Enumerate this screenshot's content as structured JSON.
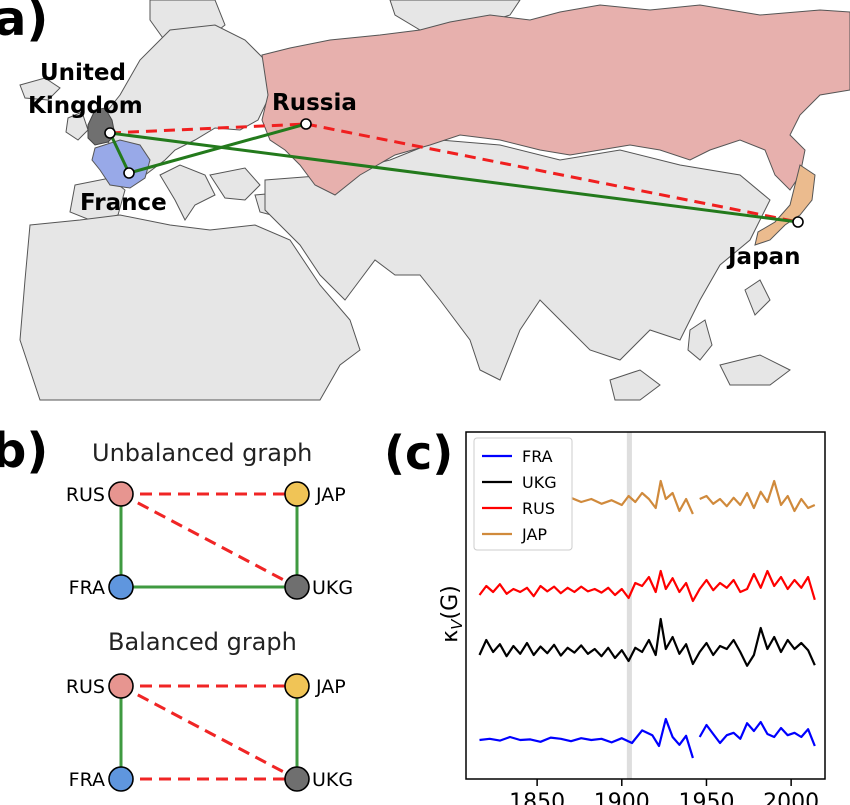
{
  "panel_a": {
    "letter": "a)",
    "countries": {
      "uk": {
        "label_line1": "United",
        "label_line2": "Kingdom"
      },
      "russia": {
        "label": "Russia"
      },
      "france": {
        "label": "France"
      },
      "japan": {
        "label": "Japan"
      }
    },
    "colors": {
      "russia_fill": "#e7b0ad",
      "france_fill": "#98a9e8",
      "japan_fill": "#ebbb8e",
      "uk_fill": "#707070",
      "land_fill": "#e6e6e6",
      "border": "#555555",
      "alliance_edge": "#237a1c",
      "enmity_edge": "#f01f1f"
    }
  },
  "panel_b": {
    "letter": "b)",
    "unbalanced_title": "Unbalanced graph",
    "balanced_title": "Balanced graph",
    "nodes": {
      "rus": "RUS",
      "jap": "JAP",
      "fra": "FRA",
      "ukg": "UKG"
    },
    "colors": {
      "rus": "#e79590",
      "jap": "#f0c456",
      "fra": "#5f96de",
      "ukg": "#6f6f6f",
      "alliance": "#3f9a40",
      "enmity": "#f02525"
    }
  },
  "panel_c": {
    "letter": "(c)",
    "ylabel": "κ_V(G)",
    "ylabel_main": "κ",
    "ylabel_sub": "V",
    "ylabel_paren": "(G)",
    "xticks": [
      "1850",
      "1900",
      "1950",
      "2000"
    ],
    "legend": [
      "FRA",
      "UKG",
      "RUS",
      "JAP"
    ]
  },
  "chart_data": {
    "type": "line",
    "title": "",
    "xlabel": "",
    "ylabel": "κ_V(G)",
    "xlim": [
      1808,
      2020
    ],
    "xticks": [
      1850,
      1900,
      1950,
      2000
    ],
    "highlight_band": [
      1903,
      1906
    ],
    "legend_position": "top-left",
    "series": [
      {
        "name": "FRA",
        "color": "#0000ff",
        "baseline": 0.0,
        "points": [
          [
            1816,
            0.0
          ],
          [
            1822,
            0.02
          ],
          [
            1828,
            -0.01
          ],
          [
            1834,
            0.05
          ],
          [
            1840,
            0.0
          ],
          [
            1846,
            0.01
          ],
          [
            1852,
            -0.03
          ],
          [
            1858,
            0.04
          ],
          [
            1864,
            0.02
          ],
          [
            1870,
            -0.02
          ],
          [
            1876,
            0.03
          ],
          [
            1882,
            0.0
          ],
          [
            1888,
            0.02
          ],
          [
            1894,
            -0.04
          ],
          [
            1900,
            0.03
          ],
          [
            1906,
            -0.05
          ],
          [
            1912,
            0.16
          ],
          [
            1918,
            0.08
          ],
          [
            1922,
            -0.1
          ],
          [
            1926,
            0.35
          ],
          [
            1930,
            0.05
          ],
          [
            1934,
            -0.08
          ],
          [
            1938,
            0.07
          ],
          [
            1942,
            -0.3
          ],
          null,
          [
            1946,
            0.05
          ],
          [
            1950,
            0.25
          ],
          [
            1954,
            0.1
          ],
          [
            1958,
            -0.05
          ],
          [
            1962,
            0.08
          ],
          [
            1966,
            0.12
          ],
          [
            1970,
            0.02
          ],
          [
            1974,
            0.28
          ],
          [
            1978,
            0.15
          ],
          [
            1982,
            0.3
          ],
          [
            1986,
            0.1
          ],
          [
            1990,
            0.05
          ],
          [
            1994,
            0.2
          ],
          [
            1998,
            0.08
          ],
          [
            2002,
            0.12
          ],
          [
            2006,
            0.05
          ],
          [
            2010,
            0.18
          ],
          [
            2014,
            -0.1
          ]
        ]
      },
      {
        "name": "UKG",
        "color": "#000000",
        "baseline": 1.0,
        "points": [
          [
            1816,
            1.0
          ],
          [
            1820,
            1.25
          ],
          [
            1824,
            1.05
          ],
          [
            1828,
            1.18
          ],
          [
            1832,
            0.98
          ],
          [
            1836,
            1.15
          ],
          [
            1840,
            1.02
          ],
          [
            1844,
            1.2
          ],
          [
            1848,
            1.0
          ],
          [
            1852,
            1.14
          ],
          [
            1856,
            1.03
          ],
          [
            1860,
            1.17
          ],
          [
            1864,
            0.99
          ],
          [
            1868,
            1.12
          ],
          [
            1872,
            1.04
          ],
          [
            1876,
            1.16
          ],
          [
            1880,
            1.02
          ],
          [
            1884,
            1.1
          ],
          [
            1888,
            0.98
          ],
          [
            1892,
            1.12
          ],
          [
            1896,
            0.95
          ],
          [
            1900,
            1.08
          ],
          [
            1904,
            0.9
          ],
          [
            1908,
            1.12
          ],
          [
            1912,
            1.05
          ],
          [
            1916,
            1.25
          ],
          [
            1920,
            1.0
          ],
          [
            1923,
            1.6
          ],
          [
            1926,
            1.1
          ],
          [
            1930,
            1.3
          ],
          [
            1934,
            1.02
          ],
          [
            1938,
            1.18
          ],
          [
            1942,
            0.85
          ],
          [
            1946,
            1.05
          ],
          [
            1950,
            1.2
          ],
          [
            1954,
            1.0
          ],
          [
            1958,
            1.15
          ],
          [
            1962,
            1.1
          ],
          [
            1966,
            1.25
          ],
          [
            1970,
            1.05
          ],
          [
            1974,
            0.82
          ],
          [
            1978,
            1.0
          ],
          [
            1982,
            1.45
          ],
          [
            1986,
            1.1
          ],
          [
            1990,
            1.3
          ],
          [
            1994,
            1.05
          ],
          [
            1998,
            1.25
          ],
          [
            2002,
            1.1
          ],
          [
            2006,
            1.2
          ],
          [
            2010,
            1.08
          ],
          [
            2014,
            0.83
          ]
        ]
      },
      {
        "name": "RUS",
        "color": "#ff0000",
        "baseline": 2.0,
        "points": [
          [
            1816,
            2.0
          ],
          [
            1820,
            2.15
          ],
          [
            1824,
            2.05
          ],
          [
            1828,
            2.18
          ],
          [
            1832,
            2.02
          ],
          [
            1836,
            2.1
          ],
          [
            1840,
            2.05
          ],
          [
            1844,
            2.12
          ],
          [
            1848,
            1.98
          ],
          [
            1852,
            2.15
          ],
          [
            1856,
            2.06
          ],
          [
            1860,
            2.14
          ],
          [
            1864,
            2.03
          ],
          [
            1868,
            2.12
          ],
          [
            1872,
            2.05
          ],
          [
            1876,
            2.14
          ],
          [
            1880,
            2.06
          ],
          [
            1884,
            2.1
          ],
          [
            1888,
            2.04
          ],
          [
            1892,
            2.12
          ],
          [
            1896,
            2.0
          ],
          [
            1900,
            2.1
          ],
          [
            1904,
            1.95
          ],
          [
            1908,
            2.2
          ],
          [
            1912,
            2.15
          ],
          [
            1916,
            2.3
          ],
          [
            1920,
            2.05
          ],
          [
            1923,
            2.4
          ],
          [
            1926,
            2.1
          ],
          [
            1930,
            2.28
          ],
          [
            1934,
            2.05
          ],
          [
            1938,
            2.2
          ],
          [
            1942,
            1.9
          ],
          [
            1946,
            2.1
          ],
          [
            1950,
            2.25
          ],
          [
            1954,
            2.08
          ],
          [
            1958,
            2.2
          ],
          [
            1962,
            2.12
          ],
          [
            1966,
            2.25
          ],
          [
            1970,
            2.05
          ],
          [
            1974,
            2.1
          ],
          [
            1978,
            2.35
          ],
          [
            1982,
            2.12
          ],
          [
            1986,
            2.4
          ],
          [
            1990,
            2.15
          ],
          [
            1994,
            2.3
          ],
          [
            1998,
            2.1
          ],
          [
            2002,
            2.25
          ],
          [
            2006,
            2.12
          ],
          [
            2010,
            2.3
          ],
          [
            2014,
            1.92
          ]
        ]
      },
      {
        "name": "JAP",
        "color": "#d08a3c",
        "baseline": 3.0,
        "points": [
          [
            1870,
            3.12
          ],
          [
            1876,
            3.05
          ],
          [
            1882,
            3.1
          ],
          [
            1888,
            3.02
          ],
          [
            1894,
            3.08
          ],
          [
            1900,
            3.0
          ],
          [
            1904,
            3.15
          ],
          [
            1908,
            3.05
          ],
          [
            1912,
            3.2
          ],
          [
            1916,
            3.1
          ],
          [
            1920,
            2.95
          ],
          [
            1923,
            3.4
          ],
          [
            1926,
            3.1
          ],
          [
            1930,
            3.2
          ],
          [
            1934,
            2.9
          ],
          [
            1938,
            3.1
          ],
          [
            1942,
            2.85
          ],
          null,
          [
            1946,
            3.1
          ],
          [
            1950,
            3.15
          ],
          [
            1954,
            3.02
          ],
          [
            1958,
            3.1
          ],
          [
            1962,
            2.98
          ],
          [
            1966,
            3.12
          ],
          [
            1970,
            3.0
          ],
          [
            1974,
            3.2
          ],
          [
            1978,
            2.95
          ],
          [
            1982,
            3.22
          ],
          [
            1986,
            3.05
          ],
          [
            1990,
            3.4
          ],
          [
            1994,
            3.0
          ],
          [
            1998,
            3.15
          ],
          [
            2002,
            2.9
          ],
          [
            2006,
            3.1
          ],
          [
            2010,
            2.95
          ],
          [
            2014,
            3.0
          ]
        ]
      }
    ]
  }
}
